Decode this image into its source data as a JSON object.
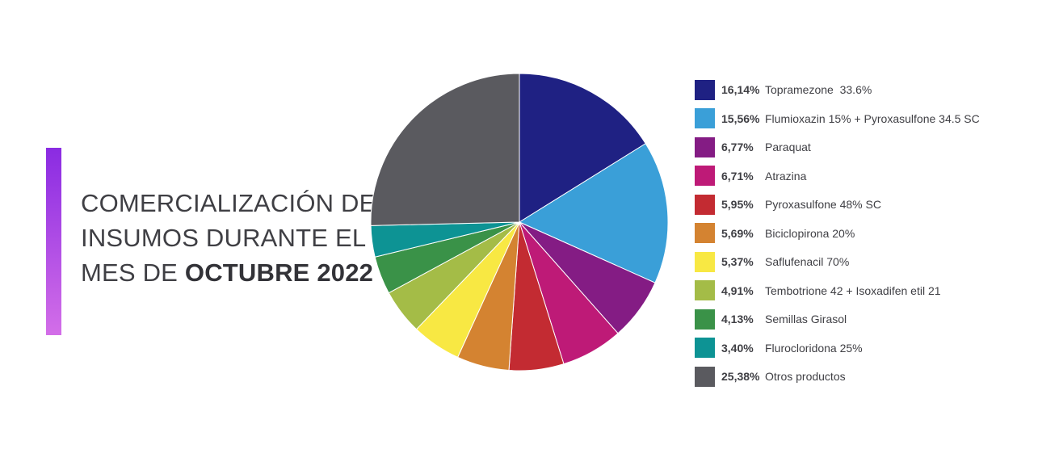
{
  "title": {
    "line1": "COMERCIALIZACIÓN DE",
    "line2": "INSUMOS DURANTE EL",
    "line3_prefix": "MES DE ",
    "line3_bold": "OCTUBRE 2022"
  },
  "colors": {
    "accent_top": "#8a2be2",
    "accent_bottom": "#d36ee8"
  },
  "chart_data": {
    "type": "pie",
    "title": "COMERCIALIZACIÓN DE INSUMOS DURANTE EL MES DE OCTUBRE 2022",
    "legend_position": "right",
    "slices": [
      {
        "label": "Topramezone  33.6%",
        "pct_label": "16,14%",
        "value": 16.14,
        "color": "#1f2183"
      },
      {
        "label": "Flumioxazin 15% + Pyroxasulfone 34.5 SC",
        "pct_label": "15,56%",
        "value": 15.56,
        "color": "#3a9fd8"
      },
      {
        "label": "Paraquat",
        "pct_label": "6,77%",
        "value": 6.77,
        "color": "#841c84"
      },
      {
        "label": "Atrazina",
        "pct_label": "6,71%",
        "value": 6.71,
        "color": "#be1a77"
      },
      {
        "label": "Pyroxasulfone 48% SC",
        "pct_label": "5,95%",
        "value": 5.95,
        "color": "#c32b32"
      },
      {
        "label": "Biciclopirona 20%",
        "pct_label": "5,69%",
        "value": 5.69,
        "color": "#d48331"
      },
      {
        "label": "Saflufenacil 70%",
        "pct_label": "5,37%",
        "value": 5.37,
        "color": "#f8e843"
      },
      {
        "label": "Tembotrione 42 + Isoxadifen etil 21",
        "pct_label": "4,91%",
        "value": 4.91,
        "color": "#a4bc47"
      },
      {
        "label": "Semillas Girasol",
        "pct_label": "4,13%",
        "value": 4.13,
        "color": "#3a9248"
      },
      {
        "label": "Flurocloridona 25%",
        "pct_label": "3,40%",
        "value": 3.4,
        "color": "#0d9394"
      },
      {
        "label": "Otros productos",
        "pct_label": "25,38%",
        "value": 25.38,
        "color": "#5a5a5f"
      }
    ]
  }
}
